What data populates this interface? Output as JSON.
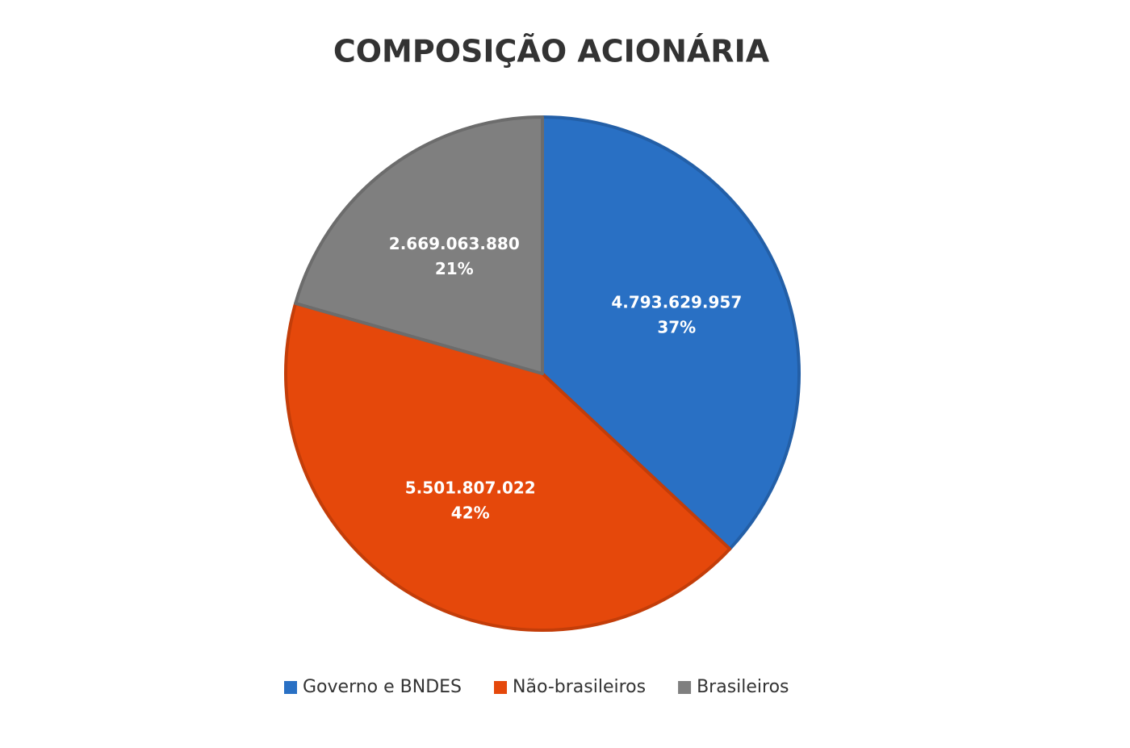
{
  "chart_data": {
    "type": "pie",
    "title": "COMPOSIÇÃO ACIONÁRIA",
    "categories": [
      "Governo e BNDES",
      "Não-brasileiros",
      "Brasileiros"
    ],
    "values": [
      4793629957,
      5501807022,
      2669063880
    ],
    "value_labels": [
      "4.793.629.957",
      "5.501.807.022",
      "2.669.063.880"
    ],
    "percent_labels": [
      "37%",
      "42%",
      "21%"
    ],
    "colors": [
      "#2970c4",
      "#e5480b",
      "#7f7f7f"
    ],
    "legend": "bottom"
  }
}
